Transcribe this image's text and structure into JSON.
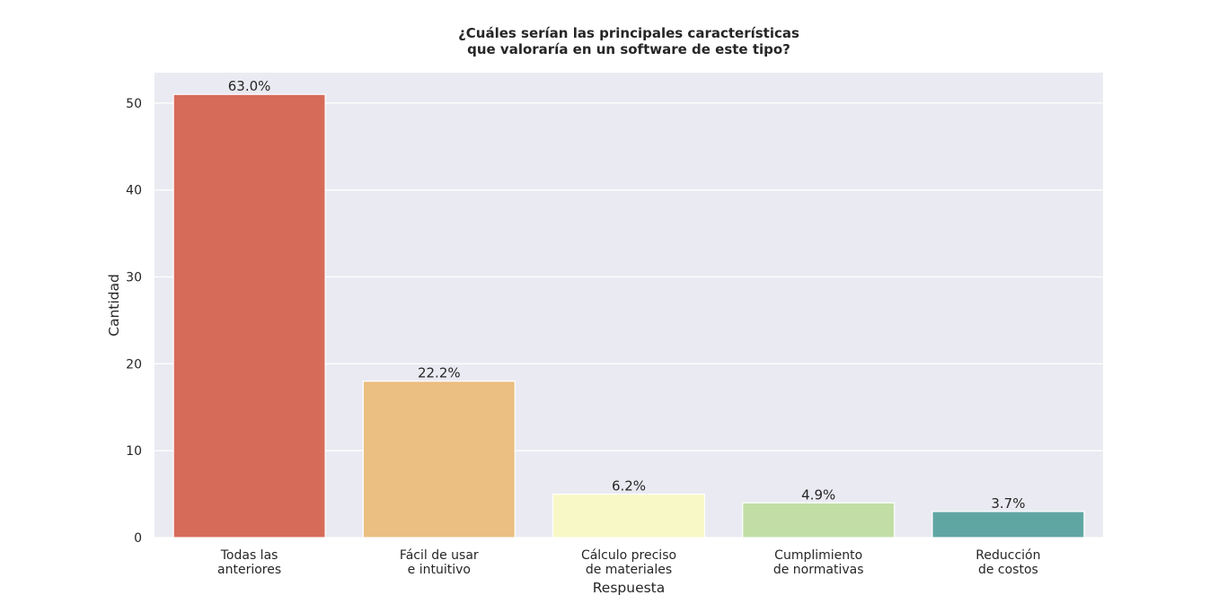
{
  "chart_data": {
    "type": "bar",
    "title": [
      "¿Cuáles serían las principales características",
      "que valoraría en un software de este tipo?"
    ],
    "xlabel": "Respuesta",
    "ylabel": "Cantidad",
    "ylim": [
      0,
      53.5
    ],
    "yticks": [
      "0",
      "10",
      "20",
      "30",
      "40",
      "50"
    ],
    "grid": true,
    "background_color": "#EAEAF2",
    "categories": [
      [
        "Todas las",
        "anteriores"
      ],
      [
        "Fácil de usar",
        "e intuitivo"
      ],
      [
        "Cálculo preciso",
        "de materiales"
      ],
      [
        "Cumplimiento",
        "de normativas"
      ],
      [
        "Reducción",
        "de costos"
      ]
    ],
    "values": [
      51,
      18,
      5,
      4,
      3
    ],
    "data_labels": [
      "63.0%",
      "22.2%",
      "6.2%",
      "4.9%",
      "3.7%"
    ],
    "colors": [
      "#D66B5A",
      "#EBBE81",
      "#F8F8C6",
      "#C2DEA6",
      "#5FA6A3"
    ]
  }
}
